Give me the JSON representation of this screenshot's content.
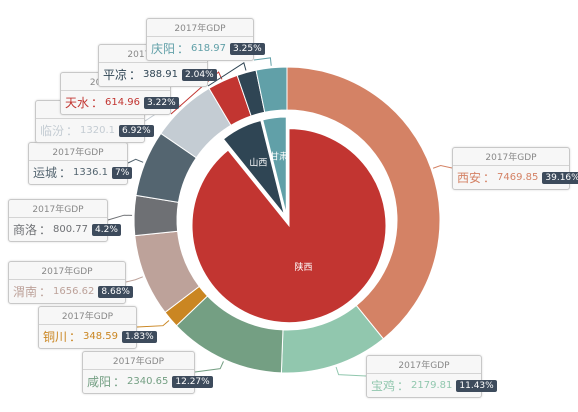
{
  "chart_data": {
    "type": "pie",
    "title": "",
    "inner": {
      "slices": [
        {
          "name": "陕西",
          "value": 89.2,
          "color": "#c23531"
        },
        {
          "name": "山西",
          "value": 6.9,
          "color": "#2f4554"
        },
        {
          "name": "甘肃",
          "value": 3.9,
          "color": "#61a0a8"
        }
      ]
    },
    "outer": {
      "header": "2017年GDP",
      "slices": [
        {
          "name": "西安",
          "value": 7469.85,
          "percent": "39.16%",
          "color": "#d48265"
        },
        {
          "name": "宝鸡",
          "value": 2179.81,
          "percent": "11.43%",
          "color": "#91c7ae"
        },
        {
          "name": "咸阳",
          "value": 2340.65,
          "percent": "12.27%",
          "color": "#749f83"
        },
        {
          "name": "铜川",
          "value": 348.59,
          "percent": "1.83%",
          "color": "#ca8622"
        },
        {
          "name": "渭南",
          "value": 1656.62,
          "percent": "8.68%",
          "color": "#bda29a"
        },
        {
          "name": "商洛",
          "value": 800.77,
          "percent": "4.2%",
          "color": "#6e7074"
        },
        {
          "name": "运城",
          "value": 1336.1,
          "percent": "7%",
          "color": "#546570"
        },
        {
          "name": "临汾",
          "value": 1320.1,
          "percent": "6.92%",
          "color": "#c4ccd3"
        },
        {
          "name": "天水",
          "value": 614.96,
          "percent": "3.22%",
          "color": "#c23531"
        },
        {
          "name": "平凉",
          "value": 388.91,
          "percent": "2.04%",
          "color": "#2f4554"
        },
        {
          "name": "庆阳",
          "value": 618.97,
          "percent": "3.25%",
          "color": "#61a0a8"
        }
      ]
    }
  }
}
